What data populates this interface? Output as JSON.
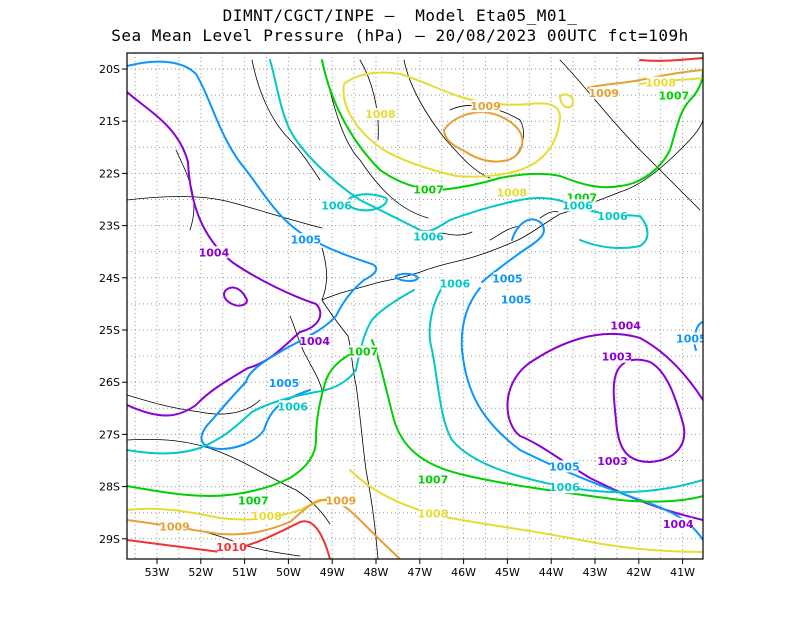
{
  "title_line1": "DIMNT/CGCT/INPE –  Model Eta05_M01_",
  "title_line2": "Sea Mean Level Pressure (hPa) – 20/08/2023 00UTC fct=109h",
  "x_ticks": [
    "53W",
    "52W",
    "51W",
    "50W",
    "49W",
    "48W",
    "47W",
    "46W",
    "45W",
    "44W",
    "43W",
    "42W",
    "41W"
  ],
  "y_ticks": [
    "20S",
    "21S",
    "22S",
    "23S",
    "24S",
    "25S",
    "26S",
    "27S",
    "28S",
    "29S"
  ],
  "colors": {
    "c1003": "#8c00d2",
    "c1004": "#8c00d2",
    "c1005": "#0a96ff",
    "c1006": "#00c8c8",
    "c1007": "#00d000",
    "c1008": "#e6dc32",
    "c1009": "#e6a032",
    "c1010": "#f03232",
    "coast": "#000000"
  },
  "contour_labels": [
    {
      "text": "1008",
      "color": "#e6dc32",
      "lon": -47.9,
      "lat": -20.9
    },
    {
      "text": "1009",
      "color": "#e6a032",
      "lon": -45.5,
      "lat": -20.75
    },
    {
      "text": "1009",
      "color": "#e6a032",
      "lon": -42.8,
      "lat": -20.5
    },
    {
      "text": "1008",
      "color": "#e6dc32",
      "lon": -41.5,
      "lat": -20.3
    },
    {
      "text": "1007",
      "color": "#00d000",
      "lon": -41.2,
      "lat": -20.55
    },
    {
      "text": "1007",
      "color": "#00d000",
      "lon": -46.8,
      "lat": -22.35
    },
    {
      "text": "1008",
      "color": "#e6dc32",
      "lon": -44.9,
      "lat": -22.4
    },
    {
      "text": "1007",
      "color": "#00d000",
      "lon": -43.3,
      "lat": -22.5
    },
    {
      "text": "1006",
      "color": "#00c8c8",
      "lon": -43.4,
      "lat": -22.65
    },
    {
      "text": "1006",
      "color": "#00c8c8",
      "lon": -48.9,
      "lat": -22.65
    },
    {
      "text": "1006",
      "color": "#00c8c8",
      "lon": -46.8,
      "lat": -23.25
    },
    {
      "text": "1006",
      "color": "#00c8c8",
      "lon": -42.6,
      "lat": -22.85
    },
    {
      "text": "1005",
      "color": "#0a96ff",
      "lon": -49.6,
      "lat": -23.3
    },
    {
      "text": "1004",
      "color": "#8c00d2",
      "lon": -51.7,
      "lat": -23.55
    },
    {
      "text": "1005",
      "color": "#0a96ff",
      "lon": -45.0,
      "lat": -24.05
    },
    {
      "text": "1006",
      "color": "#00c8c8",
      "lon": -46.2,
      "lat": -24.15
    },
    {
      "text": "1005",
      "color": "#0a96ff",
      "lon": -44.8,
      "lat": -24.45
    },
    {
      "text": "1004",
      "color": "#8c00d2",
      "lon": -49.4,
      "lat": -25.25
    },
    {
      "text": "1007",
      "color": "#00d000",
      "lon": -48.3,
      "lat": -25.45
    },
    {
      "text": "1004",
      "color": "#8c00d2",
      "lon": -42.3,
      "lat": -24.95
    },
    {
      "text": "1003",
      "color": "#8c00d2",
      "lon": -42.5,
      "lat": -25.55
    },
    {
      "text": "1005",
      "color": "#0a96ff",
      "lon": -40.8,
      "lat": -25.2
    },
    {
      "text": "1005",
      "color": "#0a96ff",
      "lon": -50.1,
      "lat": -26.05
    },
    {
      "text": "1006",
      "color": "#00c8c8",
      "lon": -49.9,
      "lat": -26.5
    },
    {
      "text": "1003",
      "color": "#8c00d2",
      "lon": -42.6,
      "lat": -27.55
    },
    {
      "text": "1005",
      "color": "#0a96ff",
      "lon": -43.7,
      "lat": -27.65
    },
    {
      "text": "1007",
      "color": "#00d000",
      "lon": -46.7,
      "lat": -27.9
    },
    {
      "text": "1006",
      "color": "#00c8c8",
      "lon": -43.7,
      "lat": -28.05
    },
    {
      "text": "1007",
      "color": "#00d000",
      "lon": -50.8,
      "lat": -28.3
    },
    {
      "text": "1009",
      "color": "#e6a032",
      "lon": -48.8,
      "lat": -28.3
    },
    {
      "text": "1008",
      "color": "#e6dc32",
      "lon": -50.5,
      "lat": -28.6
    },
    {
      "text": "1008",
      "color": "#e6dc32",
      "lon": -46.7,
      "lat": -28.55
    },
    {
      "text": "1009",
      "color": "#e6a032",
      "lon": -52.6,
      "lat": -28.8
    },
    {
      "text": "1004",
      "color": "#8c00d2",
      "lon": -41.1,
      "lat": -28.75
    },
    {
      "text": "1010",
      "color": "#f03232",
      "lon": -51.3,
      "lat": -29.2
    }
  ]
}
